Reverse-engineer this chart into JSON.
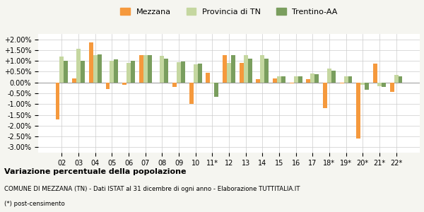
{
  "categories": [
    "02",
    "03",
    "04",
    "05",
    "06",
    "07",
    "08",
    "09",
    "10",
    "11*",
    "12",
    "13",
    "14",
    "15",
    "16",
    "17",
    "18*",
    "19*",
    "20*",
    "21*",
    "22*"
  ],
  "mezzana": [
    -1.7,
    0.2,
    1.85,
    -0.3,
    -0.1,
    1.28,
    0.0,
    -0.2,
    -1.0,
    0.45,
    1.28,
    0.92,
    0.15,
    0.2,
    -0.05,
    0.15,
    -1.2,
    -0.05,
    -2.6,
    0.88,
    -0.45
  ],
  "provincia": [
    1.2,
    1.55,
    1.28,
    1.0,
    0.92,
    1.28,
    1.25,
    0.95,
    0.85,
    -0.05,
    0.9,
    1.28,
    1.28,
    0.3,
    0.28,
    0.42,
    0.63,
    0.3,
    -0.1,
    -0.18,
    0.35
  ],
  "trentino": [
    1.02,
    1.02,
    1.3,
    1.08,
    1.0,
    1.28,
    1.12,
    0.98,
    0.88,
    -0.68,
    1.28,
    1.12,
    1.1,
    0.28,
    0.28,
    0.38,
    0.55,
    0.28,
    -0.35,
    -0.2,
    0.3
  ],
  "color_mezzana": "#f5993d",
  "color_provincia": "#c5d7a0",
  "color_trentino": "#7a9e5e",
  "title": "Variazione percentuale della popolazione",
  "subtitle": "COMUNE DI MEZZANA (TN) - Dati ISTAT al 31 dicembre di ogni anno - Elaborazione TUTTITALIA.IT",
  "footnote": "(*) post-censimento",
  "legend_labels": [
    "Mezzana",
    "Provincia di TN",
    "Trentino-AA"
  ],
  "ylim": [
    -3.25,
    2.25
  ],
  "yticks": [
    -3.0,
    -2.5,
    -2.0,
    -1.5,
    -1.0,
    -0.5,
    0.0,
    0.5,
    1.0,
    1.5,
    2.0
  ],
  "ytick_labels": [
    "-3.00%",
    "-2.50%",
    "-2.00%",
    "-1.50%",
    "-1.00%",
    "-0.50%",
    "0.00%",
    "+0.50%",
    "+1.00%",
    "+1.50%",
    "+2.00%"
  ],
  "bg_color": "#f5f5f0",
  "plot_bg_color": "#ffffff"
}
